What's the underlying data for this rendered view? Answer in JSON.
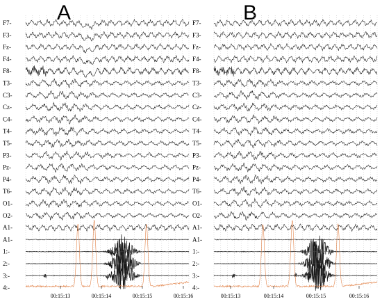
{
  "chart_data": {
    "type": "line",
    "title": "",
    "panels": [
      {
        "label": "A",
        "time_ticks": [
          "00:15:13",
          "00:15:14",
          "00:15:15",
          "00:15:16"
        ],
        "channels": [
          "F7-",
          "F3-",
          "Fz-",
          "F4-",
          "F8-",
          "T3-",
          "C3-",
          "Cz-",
          "C4-",
          "T4-",
          "T5-",
          "P3-",
          "Pz-",
          "P4-",
          "T6-",
          "O1-",
          "O2-",
          "A1-",
          "A1-",
          "1:-",
          "2:-",
          "3:-",
          "4:-"
        ]
      },
      {
        "label": "B",
        "time_ticks": [
          "00:15:13",
          "00:15:14",
          "00:15:15",
          "00:15:16"
        ],
        "channels": [
          "F7-",
          "F3-",
          "Fz-",
          "F4-",
          "F8-",
          "T3-",
          "C3-",
          "Cz-",
          "C4-",
          "T4-",
          "T5-",
          "P3-",
          "Pz-",
          "P4-",
          "T6-",
          "O1-",
          "O2-",
          "A1-",
          "A1-",
          "1:-",
          "2:-",
          "3:-",
          "4:-"
        ]
      }
    ],
    "colors": {
      "trace": "#1a1a1a",
      "emg": "#e07a3c",
      "grid": "#c0c0c0",
      "baseline": "#555555"
    },
    "grid": true
  }
}
